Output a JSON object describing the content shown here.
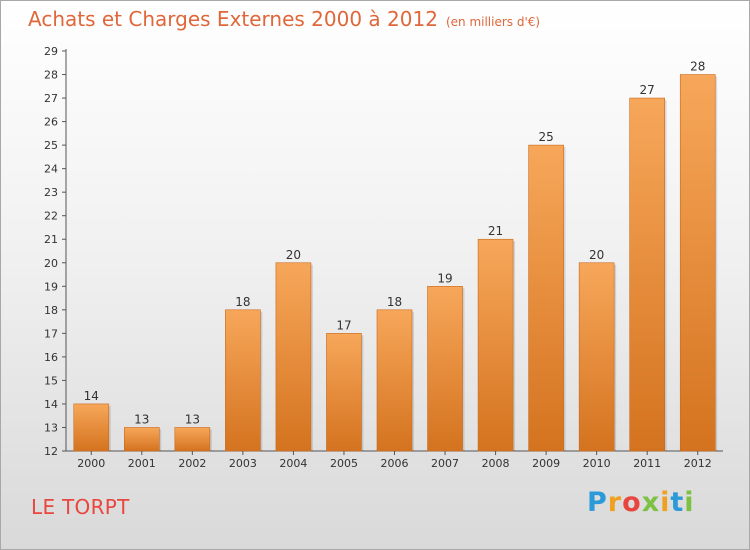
{
  "header": {
    "title": "Achats et Charges Externes 2000 à 2012",
    "unit": "(en milliers d'€)"
  },
  "footer": {
    "commune": "LE TORPT",
    "brand": "Proxiti"
  },
  "colors": {
    "bar_top": "#f7a75a",
    "bar_bottom": "#d4731f",
    "title": "#e0673a",
    "commune": "#e8463f"
  },
  "chart_data": {
    "type": "bar",
    "title": "Achats et Charges Externes 2000 à 2012",
    "subtitle": "(en milliers d'€)",
    "xlabel": "",
    "ylabel": "",
    "categories": [
      "2000",
      "2001",
      "2002",
      "2003",
      "2004",
      "2005",
      "2006",
      "2007",
      "2008",
      "2009",
      "2010",
      "2011",
      "2012"
    ],
    "values": [
      14,
      13,
      13,
      18,
      20,
      17,
      18,
      19,
      21,
      25,
      20,
      27,
      28
    ],
    "ylim": [
      12,
      29
    ],
    "yticks": [
      12,
      13,
      14,
      15,
      16,
      17,
      18,
      19,
      20,
      21,
      22,
      23,
      24,
      25,
      26,
      27,
      28,
      29
    ],
    "grid": false,
    "legend": "none"
  }
}
